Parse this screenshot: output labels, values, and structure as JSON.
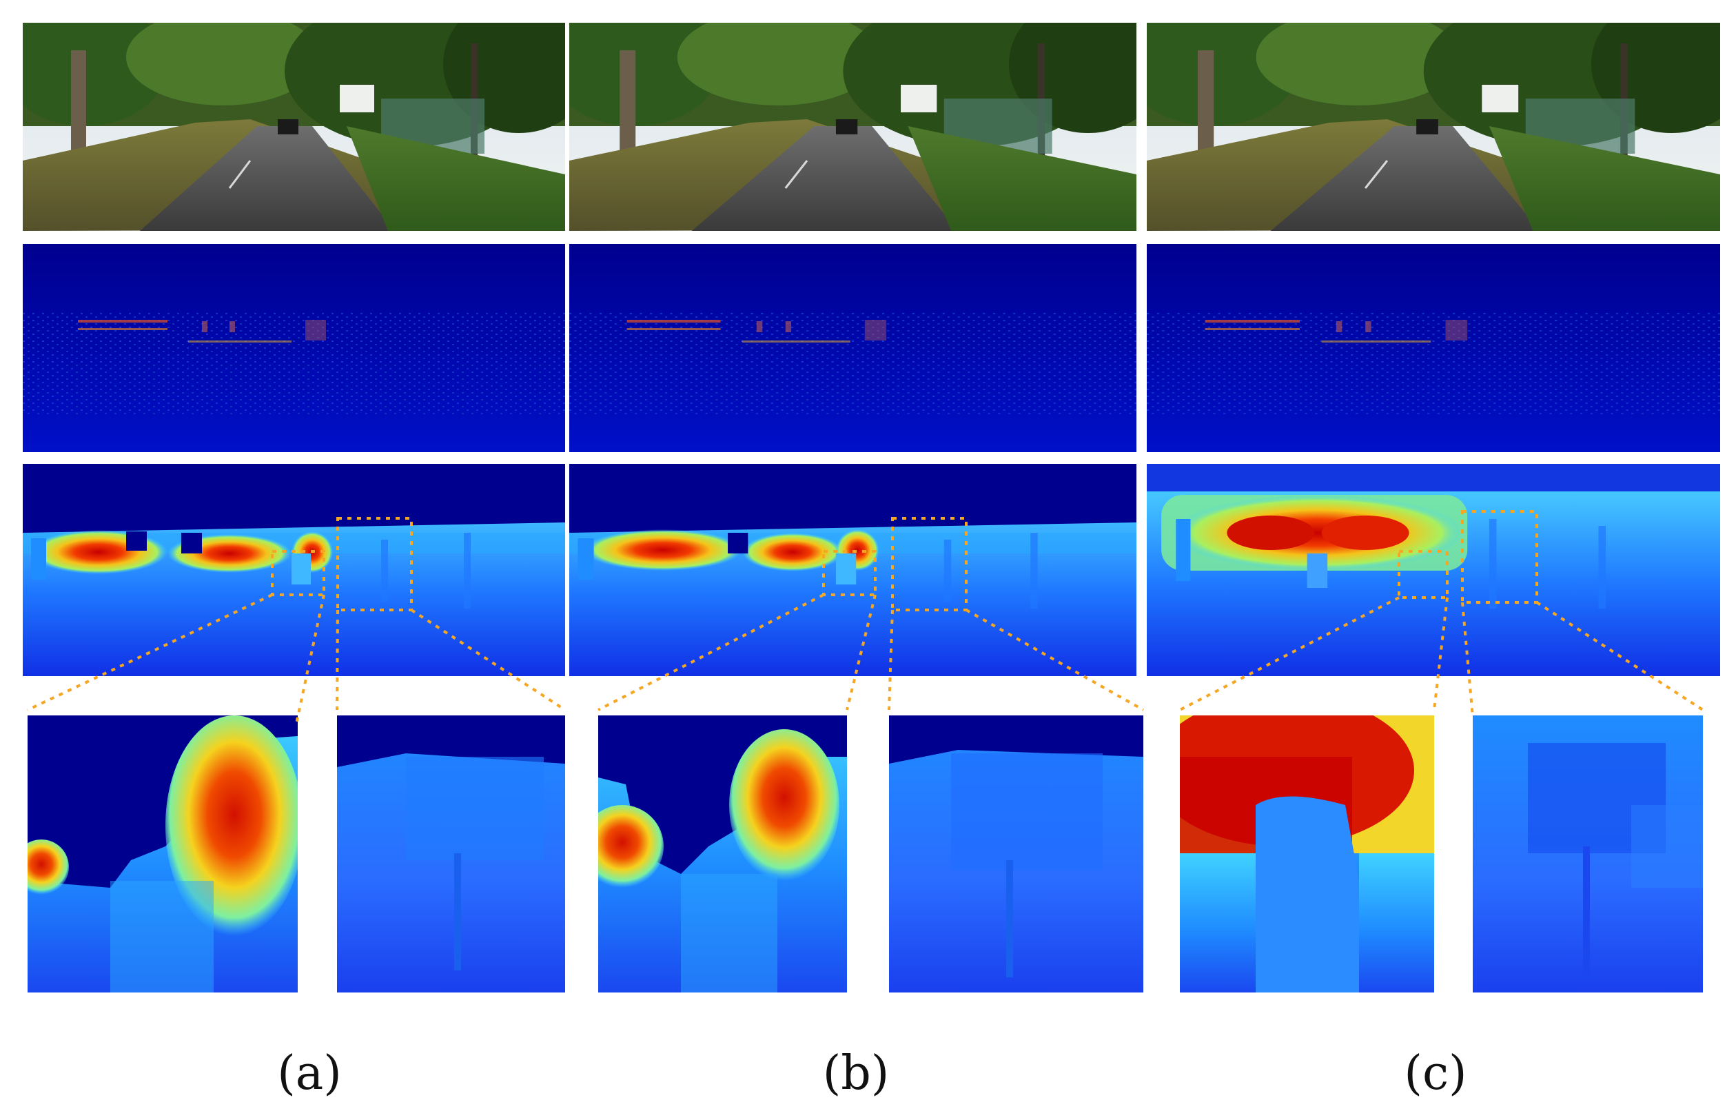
{
  "figure": {
    "columns": [
      {
        "id": "a",
        "caption": "(a)"
      },
      {
        "id": "b",
        "caption": "(b)"
      },
      {
        "id": "c",
        "caption": "(c)"
      }
    ],
    "rows": [
      "rgb-scene",
      "sparse-lidar-depth",
      "dense-depth-prediction",
      "zoomed-crops"
    ],
    "colors": {
      "depth_far": "#00008f",
      "depth_mid": "#1f6cff",
      "depth_cyan": "#3fd2ff",
      "depth_yellow": "#f5f11e",
      "depth_near": "#c80000",
      "highlight_box": "#f5a623"
    }
  }
}
